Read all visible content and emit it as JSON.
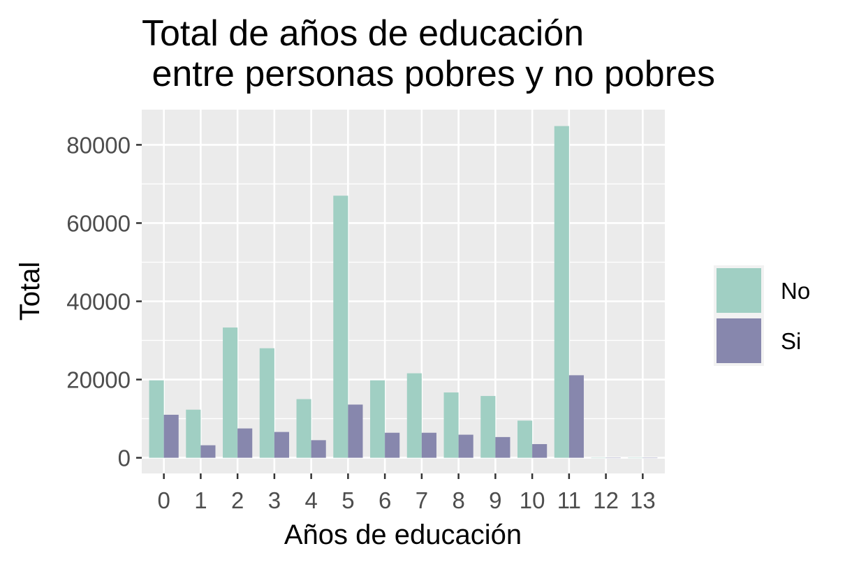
{
  "chart_data": {
    "type": "bar",
    "title": [
      "Total de años de educación",
      " entre personas pobres y no pobres"
    ],
    "xlabel": "Años de educación",
    "ylabel": "Total",
    "categories": [
      "0",
      "1",
      "2",
      "3",
      "4",
      "5",
      "6",
      "7",
      "8",
      "9",
      "10",
      "11",
      "12",
      "13"
    ],
    "series": [
      {
        "name": "No",
        "color": "#a0cfc3",
        "values": [
          19800,
          12300,
          33300,
          28000,
          15000,
          67000,
          19800,
          21600,
          16700,
          15800,
          9500,
          84800,
          0,
          0
        ]
      },
      {
        "name": "Si",
        "color": "#8787ad",
        "values": [
          11000,
          3200,
          7500,
          6600,
          4500,
          13600,
          6400,
          6400,
          5900,
          5300,
          3500,
          21100,
          0,
          0
        ]
      }
    ],
    "ylim": [
      -4000,
      89000
    ],
    "yticks": [
      0,
      20000,
      40000,
      60000,
      80000
    ],
    "grid": true,
    "legend": "right",
    "panel_background": "#ebebeb"
  }
}
